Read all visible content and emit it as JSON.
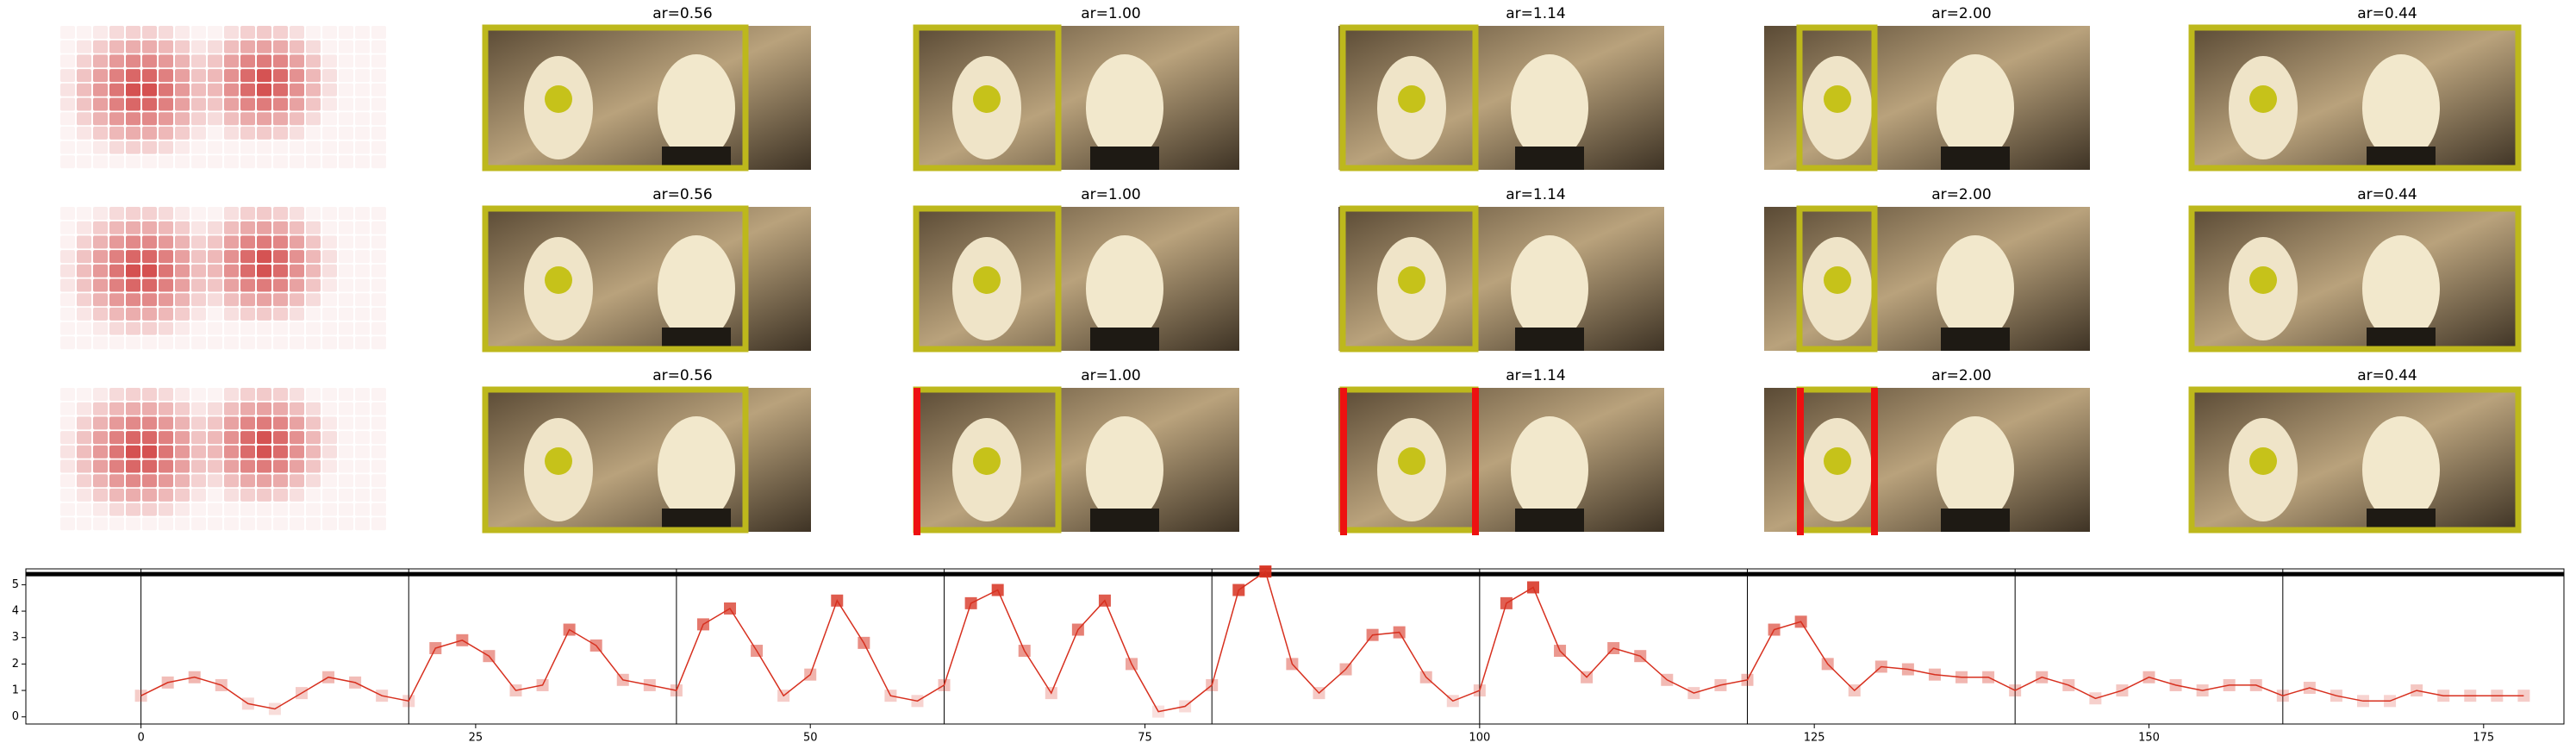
{
  "image_grid": {
    "rows": [
      {
        "titles": [
          "ar=0.56",
          "ar=1.00",
          "ar=1.14",
          "ar=2.00",
          "ar=0.44"
        ]
      },
      {
        "titles": [
          "ar=0.56",
          "ar=1.00",
          "ar=1.14",
          "ar=2.00",
          "ar=0.44"
        ]
      },
      {
        "titles": [
          "ar=0.56",
          "ar=1.00",
          "ar=1.14",
          "ar=2.00",
          "ar=0.44"
        ]
      }
    ]
  },
  "chart_data": {
    "type": "line",
    "x": [
      0,
      2,
      4,
      6,
      8,
      10,
      12,
      14,
      16,
      18,
      20,
      22,
      24,
      26,
      28,
      30,
      32,
      34,
      36,
      38,
      40,
      42,
      44,
      46,
      48,
      50,
      52,
      54,
      56,
      58,
      60,
      62,
      64,
      66,
      68,
      70,
      72,
      74,
      76,
      78,
      80,
      82,
      84,
      86,
      88,
      90,
      92,
      94,
      96,
      98,
      100,
      102,
      104,
      106,
      108,
      110,
      112,
      114,
      116,
      118,
      120,
      122,
      124,
      126,
      128,
      130,
      132,
      134,
      136,
      138,
      140,
      142,
      144,
      146,
      148,
      150,
      152,
      154,
      156,
      158,
      160,
      162,
      164,
      166,
      168,
      170,
      172,
      174,
      176,
      178
    ],
    "values": [
      0.8,
      1.3,
      1.5,
      1.2,
      0.5,
      0.3,
      0.9,
      1.5,
      1.3,
      0.8,
      0.6,
      2.6,
      2.9,
      2.3,
      1.0,
      1.2,
      3.3,
      2.7,
      1.4,
      1.2,
      1.0,
      3.5,
      4.1,
      2.5,
      0.8,
      1.6,
      4.4,
      2.8,
      0.8,
      0.6,
      1.2,
      4.3,
      4.8,
      2.5,
      0.9,
      3.3,
      4.4,
      2.0,
      0.2,
      0.4,
      1.2,
      4.8,
      5.5,
      2.0,
      0.9,
      1.8,
      3.1,
      3.2,
      1.5,
      0.6,
      1.0,
      4.3,
      4.9,
      2.5,
      1.5,
      2.6,
      2.3,
      1.4,
      0.9,
      1.2,
      1.4,
      3.3,
      3.6,
      2.0,
      1.0,
      1.9,
      1.8,
      1.6,
      1.5,
      1.5,
      1.0,
      1.5,
      1.2,
      0.7,
      1.0,
      1.5,
      1.2,
      1.0,
      1.2,
      1.2,
      0.8,
      1.1,
      0.8,
      0.6,
      0.6,
      1.0,
      0.8,
      0.8,
      0.8,
      0.8
    ],
    "color": "#d7301f",
    "xlim": [
      -8.6,
      181
    ],
    "ylim": [
      -0.27,
      5.6
    ],
    "xticks": [
      0,
      25,
      50,
      75,
      100,
      125,
      150,
      175
    ],
    "yticks": [
      0,
      1,
      2,
      3,
      4,
      5
    ],
    "vlines": [
      0,
      20,
      40,
      60,
      80,
      100,
      120,
      140,
      160
    ],
    "hline": 5.4
  }
}
